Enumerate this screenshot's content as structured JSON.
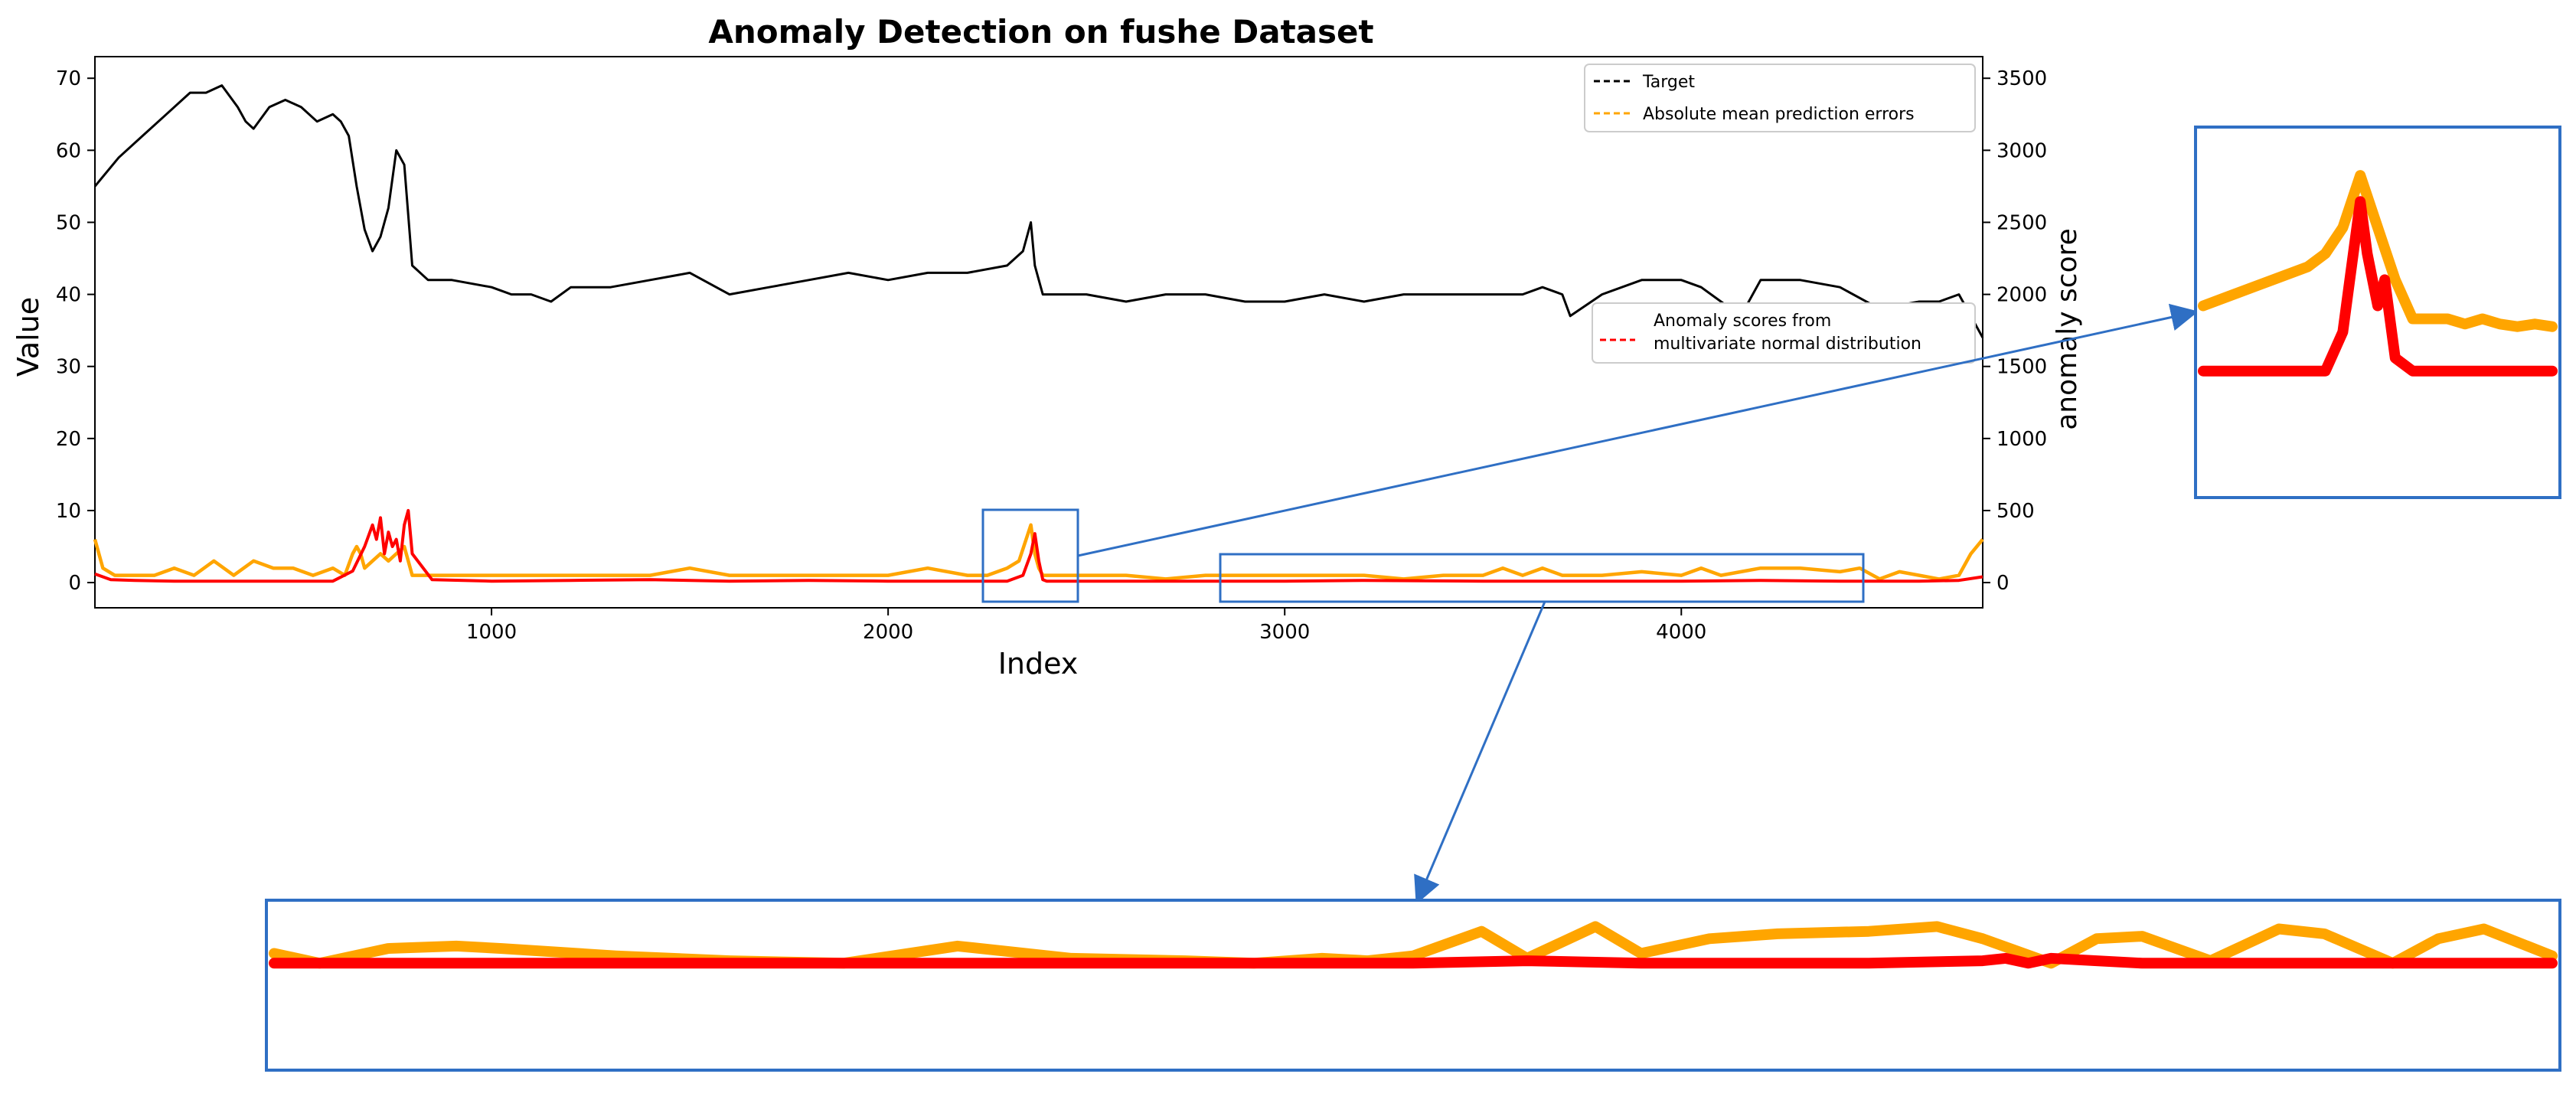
{
  "chart_data": {
    "type": "line",
    "title": "Anomaly Detection on fushe Dataset",
    "xlabel": "Index",
    "ylabel": "Value",
    "y2label": "anomaly score",
    "xlim": [
      0,
      4760
    ],
    "ylim": [
      -3.5,
      73
    ],
    "y2lim": [
      -175,
      3650
    ],
    "xticks": [
      1000,
      2000,
      3000,
      4000
    ],
    "yticks": [
      0,
      10,
      20,
      30,
      40,
      50,
      60,
      70
    ],
    "y2ticks": [
      0,
      500,
      1000,
      1500,
      2000,
      2500,
      3000,
      3500
    ],
    "grid": false,
    "legend_upper": {
      "placement": "top-right",
      "entries": [
        "Target",
        "Absolute mean prediction errors"
      ]
    },
    "legend_lower": {
      "placement": "center-right",
      "entries": [
        "Anomaly scores from multivariate normal distribution"
      ],
      "lines": [
        "Anomaly scores from",
        "multivariate normal distribution"
      ]
    },
    "series": [
      {
        "name": "Target",
        "axis": "left",
        "color": "#000000",
        "x": [
          0,
          60,
          120,
          180,
          240,
          280,
          320,
          360,
          380,
          400,
          440,
          480,
          520,
          560,
          600,
          620,
          640,
          660,
          680,
          700,
          720,
          740,
          760,
          780,
          800,
          840,
          900,
          1000,
          1050,
          1100,
          1150,
          1200,
          1300,
          1400,
          1500,
          1600,
          1700,
          1800,
          1900,
          2000,
          2100,
          2200,
          2300,
          2340,
          2360,
          2370,
          2380,
          2390,
          2400,
          2450,
          2500,
          2600,
          2700,
          2800,
          2900,
          3000,
          3100,
          3200,
          3300,
          3400,
          3500,
          3600,
          3650,
          3700,
          3720,
          3800,
          3900,
          4000,
          4050,
          4100,
          4150,
          4200,
          4300,
          4400,
          4500,
          4600,
          4650,
          4700,
          4740,
          4760
        ],
        "y": [
          55,
          59,
          62,
          65,
          68,
          68,
          69,
          66,
          64,
          63,
          66,
          67,
          66,
          64,
          65,
          64,
          62,
          55,
          49,
          46,
          48,
          52,
          60,
          58,
          44,
          42,
          42,
          41,
          40,
          40,
          39,
          41,
          41,
          42,
          43,
          40,
          41,
          42,
          43,
          42,
          43,
          43,
          44,
          46,
          50,
          44,
          42,
          40,
          40,
          40,
          40,
          39,
          40,
          40,
          39,
          39,
          40,
          39,
          40,
          40,
          40,
          40,
          41,
          40,
          37,
          40,
          42,
          42,
          41,
          39,
          37,
          42,
          42,
          41,
          38,
          39,
          39,
          40,
          36,
          34
        ]
      },
      {
        "name": "Absolute mean prediction errors",
        "axis": "left",
        "color": "#FFA500",
        "x": [
          0,
          20,
          50,
          100,
          150,
          200,
          250,
          300,
          350,
          400,
          450,
          500,
          550,
          600,
          630,
          650,
          660,
          670,
          680,
          700,
          720,
          740,
          760,
          780,
          800,
          830,
          900,
          1000,
          1100,
          1200,
          1300,
          1400,
          1500,
          1600,
          1700,
          1800,
          1900,
          2000,
          2100,
          2200,
          2250,
          2300,
          2330,
          2360,
          2370,
          2380,
          2390,
          2400,
          2450,
          2500,
          2600,
          2700,
          2800,
          2900,
          3000,
          3100,
          3200,
          3300,
          3400,
          3500,
          3550,
          3600,
          3650,
          3700,
          3800,
          3900,
          4000,
          4050,
          4100,
          4200,
          4300,
          4400,
          4450,
          4500,
          4550,
          4600,
          4650,
          4700,
          4730,
          4760
        ],
        "y": [
          6,
          2,
          1,
          1,
          1,
          2,
          1,
          3,
          1,
          3,
          2,
          2,
          1,
          2,
          1,
          4,
          5,
          4,
          2,
          3,
          4,
          3,
          4,
          5,
          1,
          1,
          1,
          1,
          1,
          1,
          1,
          1,
          2,
          1,
          1,
          1,
          1,
          1,
          2,
          1,
          1,
          2,
          3,
          8,
          4,
          2,
          1,
          1,
          1,
          1,
          1,
          0.5,
          1,
          1,
          1,
          1,
          1,
          0.5,
          1,
          1,
          2,
          1,
          2,
          1,
          1,
          1.5,
          1,
          2,
          1,
          2,
          2,
          1.5,
          2,
          0.5,
          1.5,
          1,
          0.5,
          1,
          4,
          6
        ]
      },
      {
        "name": "Anomaly scores from multivariate normal distribution",
        "axis": "right",
        "color": "#FF0000",
        "x": [
          0,
          40,
          100,
          200,
          300,
          400,
          500,
          600,
          650,
          680,
          700,
          710,
          720,
          730,
          740,
          750,
          760,
          770,
          780,
          790,
          800,
          850,
          1000,
          1200,
          1400,
          1600,
          1800,
          2000,
          2200,
          2300,
          2340,
          2360,
          2370,
          2380,
          2390,
          2400,
          2450,
          2600,
          2800,
          3000,
          3200,
          3500,
          3800,
          4000,
          4200,
          4400,
          4600,
          4700,
          4760
        ],
        "y": [
          60,
          20,
          15,
          10,
          10,
          10,
          10,
          10,
          80,
          250,
          400,
          300,
          450,
          200,
          350,
          250,
          300,
          150,
          400,
          500,
          200,
          20,
          10,
          15,
          20,
          10,
          15,
          10,
          10,
          10,
          50,
          200,
          340,
          150,
          20,
          10,
          10,
          10,
          10,
          10,
          15,
          10,
          10,
          10,
          15,
          10,
          10,
          15,
          40
        ]
      }
    ],
    "annotations": {
      "boxes": [
        {
          "label": "spike-box",
          "x": [
            2250,
            2490
          ],
          "y": [
            -2.5,
            10
          ]
        },
        {
          "label": "flat-box",
          "x": [
            2830,
            4490
          ],
          "y": [
            -2,
            4
          ]
        }
      ]
    },
    "insets": [
      {
        "name": "inset-spike",
        "shows": "spike-box",
        "series": [
          {
            "name": "Absolute mean prediction errors",
            "color": "#FFA500",
            "x": [
              0,
              10,
              20,
              30,
              35,
              40,
              45,
              50,
              55,
              60,
              65,
              70,
              75,
              80,
              85,
              90,
              95,
              100
            ],
            "y": [
              3,
              3.5,
              4,
              4.5,
              5,
              6,
              8,
              6,
              4,
              2.5,
              2.5,
              2.5,
              2.3,
              2.5,
              2.3,
              2.2,
              2.3,
              2.2
            ]
          },
          {
            "name": "Anomaly scores from multivariate normal distribution",
            "color": "#FF0000",
            "x": [
              0,
              10,
              20,
              30,
              35,
              40,
              42,
              45,
              47,
              50,
              52,
              55,
              60,
              70,
              80,
              90,
              100
            ],
            "y": [
              0.5,
              0.5,
              0.5,
              0.5,
              0.5,
              2,
              4,
              7,
              5,
              3,
              4,
              1,
              0.5,
              0.5,
              0.5,
              0.5,
              0.5
            ]
          }
        ]
      },
      {
        "name": "inset-flat",
        "shows": "flat-box",
        "series": [
          {
            "name": "Absolute mean prediction errors",
            "color": "#FFA500",
            "x": [
              0,
              2,
              5,
              8,
              10,
              15,
              20,
              25,
              30,
              35,
              40,
              43,
              46,
              48,
              50,
              53,
              55,
              58,
              60,
              63,
              66,
              70,
              73,
              75,
              78,
              80,
              82,
              85,
              88,
              90,
              93,
              95,
              97,
              100
            ],
            "y": [
              0.6,
              0.2,
              0.8,
              0.9,
              0.8,
              0.5,
              0.3,
              0.2,
              0.9,
              0.4,
              0.3,
              0.2,
              0.4,
              0.3,
              0.5,
              1.5,
              0.4,
              1.7,
              0.6,
              1.2,
              1.4,
              1.5,
              1.7,
              1.2,
              0.2,
              1.2,
              1.3,
              0.3,
              1.6,
              1.4,
              0.2,
              1.2,
              1.6,
              0.5
            ]
          },
          {
            "name": "Anomaly scores from multivariate normal distribution",
            "color": "#FF0000",
            "x": [
              0,
              30,
              50,
              55,
              60,
              70,
              75,
              76,
              77,
              78,
              80,
              82,
              85,
              90,
              100
            ],
            "y": [
              0.2,
              0.2,
              0.2,
              0.3,
              0.2,
              0.2,
              0.3,
              0.4,
              0.2,
              0.4,
              0.3,
              0.2,
              0.2,
              0.2,
              0.2
            ]
          }
        ]
      }
    ]
  }
}
